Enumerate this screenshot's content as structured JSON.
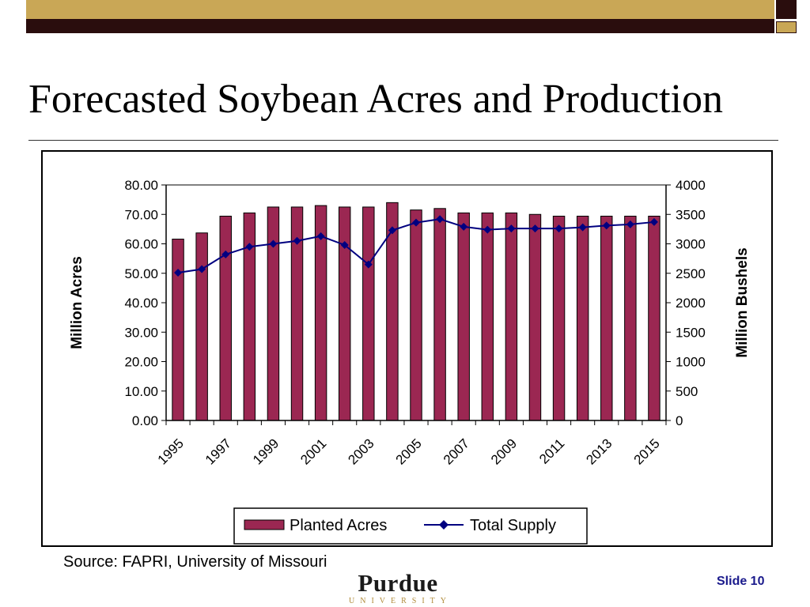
{
  "slide": {
    "title": "Forecasted Soybean Acres and Production",
    "source": "Source:  FAPRI, University of Missouri",
    "slide_number": "Slide 10",
    "logo_word": "Purdue",
    "logo_sub": "UNIVERSITY"
  },
  "chart_data": {
    "type": "bar",
    "title": "",
    "categories": [
      "1995",
      "1996",
      "1997",
      "1998",
      "1999",
      "2000",
      "2001",
      "2002",
      "2003",
      "2004",
      "2005",
      "2006",
      "2007",
      "2008",
      "2009",
      "2010",
      "2011",
      "2012",
      "2013",
      "2014",
      "2015"
    ],
    "x_tick_labels": [
      "1995",
      "1997",
      "1999",
      "2001",
      "2003",
      "2005",
      "2007",
      "2009",
      "2011",
      "2013",
      "2015"
    ],
    "y_left_label": "Million Acres",
    "y_right_label": "Million Bushels",
    "y_left_lim": [
      0,
      80
    ],
    "y_left_ticks": [
      "0.00",
      "10.00",
      "20.00",
      "30.00",
      "40.00",
      "50.00",
      "60.00",
      "70.00",
      "80.00"
    ],
    "y_right_lim": [
      0,
      4000
    ],
    "y_right_ticks": [
      "0",
      "500",
      "1000",
      "1500",
      "2000",
      "2500",
      "3000",
      "3500",
      "4000"
    ],
    "grid": "horizontal top line only",
    "legend_position": "bottom",
    "series": [
      {
        "name": "Planted Acres",
        "type": "bar",
        "axis": "left",
        "color": "#9b2752",
        "values": [
          61.6,
          63.7,
          69.4,
          70.5,
          72.5,
          72.5,
          73.0,
          72.5,
          72.5,
          74.0,
          71.5,
          72.0,
          70.5,
          70.5,
          70.5,
          70.0,
          69.4,
          69.4,
          69.4,
          69.4,
          69.4
        ]
      },
      {
        "name": "Total Supply",
        "type": "line",
        "axis": "right",
        "color": "#000080",
        "values": [
          2510,
          2570,
          2820,
          2950,
          3000,
          3050,
          3130,
          2980,
          2650,
          3230,
          3360,
          3420,
          3290,
          3240,
          3260,
          3260,
          3260,
          3280,
          3310,
          3330,
          3370
        ]
      }
    ]
  }
}
